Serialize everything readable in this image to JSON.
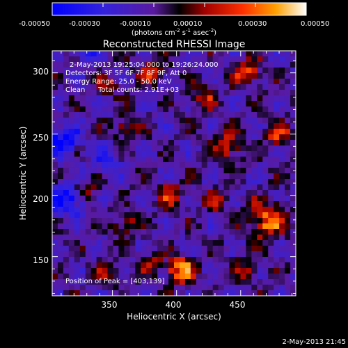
{
  "chart_data": {
    "type": "heatmap",
    "title": "Reconstructed RHESSI Image",
    "xlabel": "Heliocentric X (arcsec)",
    "ylabel": "Heliocentric Y (arcsec)",
    "xlim": [
      303,
      493
    ],
    "ylim": [
      118,
      318
    ],
    "x_ticks": [
      "350",
      "400",
      "450"
    ],
    "y_ticks": [
      "150",
      "200",
      "250",
      "300"
    ],
    "colorbar": {
      "ticks": [
        "-0.00050",
        "-0.00030",
        "-0.00010",
        "0.00010",
        "0.00030",
        "0.00050"
      ],
      "range": [
        -0.0005,
        0.0005
      ],
      "unit_label": "(photons cm",
      "unit_exp1": "-2",
      "unit_mid": " s",
      "unit_exp2": "-1",
      "unit_mid2": " asec",
      "unit_exp3": "-2",
      "unit_end": ")"
    },
    "annotations": {
      "line1": "2-May-2013 19:25:04.000 to 19:26:24.000",
      "line2": "Detectors: 3F 5F 6F 7F 8F 9F, Att 0",
      "line3": "Energy Range: 25.0 - 50.0 keV",
      "line4a": "Clean",
      "line4b": "Total counts: 2.91E+03",
      "peak": "Position of Peak = [403,139]"
    },
    "peak_position": [
      403,
      139
    ],
    "timestamp": "2-May-2013 21:45",
    "colors": {
      "low": "#0000ff",
      "mid_low": "#4a1a8c",
      "zero": "#000000",
      "mid_high": "#ff2000",
      "high": "#ffffff"
    }
  }
}
